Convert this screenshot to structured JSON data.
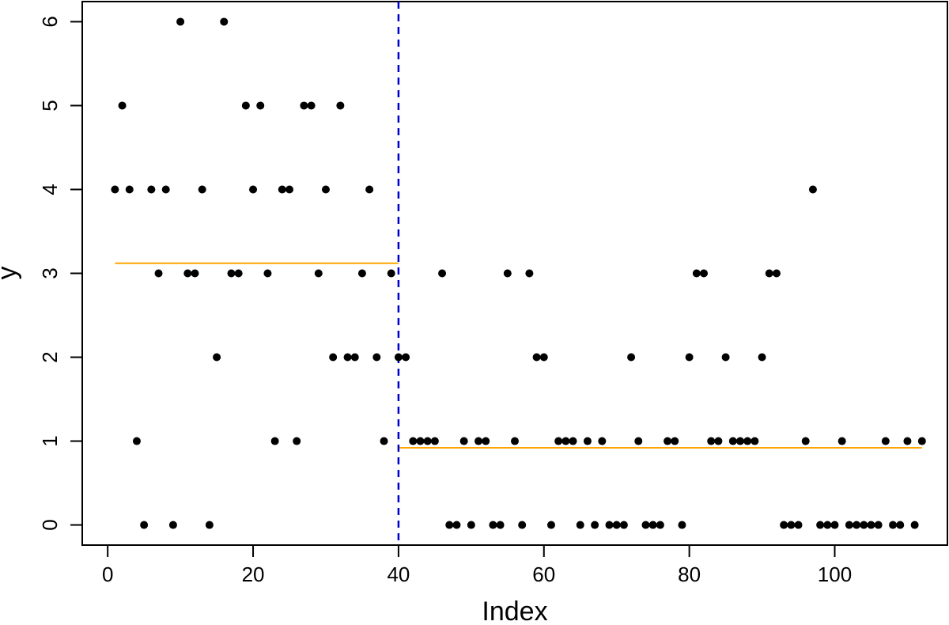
{
  "chart_data": {
    "type": "scatter",
    "title": "",
    "xlabel": "Index",
    "ylabel": "y",
    "xlim": [
      -3.5,
      115.5
    ],
    "ylim": [
      -0.24,
      6.24
    ],
    "x_ticks": [
      0,
      20,
      40,
      60,
      80,
      100
    ],
    "y_ticks": [
      0,
      1,
      2,
      3,
      4,
      5,
      6
    ],
    "grid": false,
    "legend": "none",
    "point_color": "#000000",
    "y": [
      4,
      5,
      4,
      1,
      0,
      4,
      3,
      4,
      0,
      6,
      3,
      3,
      4,
      0,
      2,
      6,
      3,
      3,
      5,
      4,
      5,
      3,
      1,
      4,
      4,
      1,
      5,
      5,
      3,
      4,
      2,
      5,
      2,
      2,
      3,
      4,
      2,
      1,
      3,
      2,
      2,
      1,
      1,
      1,
      1,
      3,
      0,
      0,
      1,
      0,
      1,
      1,
      0,
      0,
      3,
      1,
      0,
      3,
      2,
      2,
      0,
      1,
      1,
      1,
      0,
      1,
      0,
      1,
      0,
      0,
      0,
      2,
      1,
      0,
      0,
      0,
      1,
      1,
      0,
      2,
      3,
      3,
      1,
      1,
      2,
      1,
      1,
      1,
      1,
      2,
      3,
      3,
      0,
      0,
      0,
      1,
      4,
      0,
      0,
      0,
      1,
      0,
      0,
      0,
      0,
      0,
      1,
      0,
      0,
      1,
      0,
      1
    ],
    "changepoint": {
      "x": 40,
      "color": "#0000cc",
      "style": "dashed"
    },
    "segment_means": [
      {
        "x_start": 1,
        "x_end": 40,
        "value": 3.12,
        "color": "#ffa500"
      },
      {
        "x_start": 40,
        "x_end": 112,
        "value": 0.92,
        "color": "#ffa500"
      }
    ]
  }
}
